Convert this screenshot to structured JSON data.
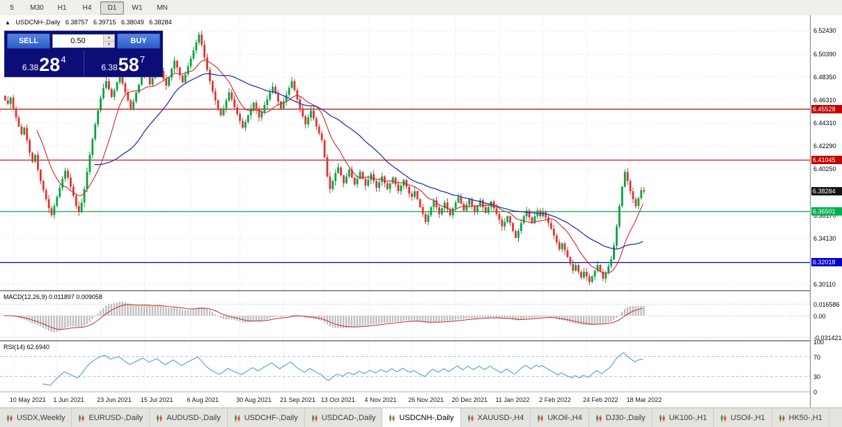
{
  "toolbar": {
    "timeframes": [
      {
        "label": "5",
        "active": false
      },
      {
        "label": "M30",
        "active": false
      },
      {
        "label": "H1",
        "active": false
      },
      {
        "label": "H4",
        "active": false
      },
      {
        "label": "D1",
        "active": true
      },
      {
        "label": "W1",
        "active": false
      },
      {
        "label": "MN",
        "active": false
      }
    ]
  },
  "chart_header": {
    "collapse_arrow": "▲",
    "title": "USDCNH-,Daily",
    "open": "6.38757",
    "high": "6.39715",
    "low": "6.38049",
    "close": "6.38284"
  },
  "trade_panel": {
    "sell_label": "SELL",
    "buy_label": "BUY",
    "volume": "0.50",
    "spin_up": "▲",
    "spin_down": "▼",
    "sell_price_prefix": "6.38",
    "sell_price_big": "28",
    "sell_price_sup": "4",
    "buy_price_prefix": "6.38",
    "buy_price_big": "58",
    "buy_price_sup": "7"
  },
  "price_axis": {
    "gridline_labels": [
      "6.52430",
      "6.50390",
      "6.48350",
      "6.46310",
      "6.44310",
      "6.42290",
      "6.40250",
      "6.36170",
      "6.34130",
      "6.30110"
    ],
    "levels": [
      {
        "label": "6.45528",
        "price": 6.45528,
        "bg": "#c40000",
        "line": "#c40000"
      },
      {
        "label": "6.41045",
        "price": 6.41045,
        "bg": "#c40000",
        "line": "#c40000"
      },
      {
        "label": "6.38284",
        "price": 6.38284,
        "bg": "#141414",
        "line": null
      },
      {
        "label": "6.36501",
        "price": 6.36501,
        "bg": "#00b050",
        "line": "#00b050"
      },
      {
        "label": "6.32018",
        "price": 6.32018,
        "bg": "#0000cc",
        "line": "#0000cc"
      }
    ]
  },
  "indicators": {
    "macd": {
      "label": "MACD(12,26,9) 0.011897 0.009058",
      "axis_labels": [
        "0.016586",
        "0.00",
        "-0.031421"
      ]
    },
    "rsi": {
      "label": "RSI(14) 62.6940",
      "axis_labels": [
        "100",
        "70",
        "30",
        "0"
      ],
      "bands": [
        70,
        30
      ]
    }
  },
  "bottom_tabs": {
    "items": [
      {
        "label": "USDX,Weekly",
        "active": false
      },
      {
        "label": "EURUSD-,Daily",
        "active": false
      },
      {
        "label": "AUDUSD-,Daily",
        "active": false
      },
      {
        "label": "USDCHF-,Daily",
        "active": false
      },
      {
        "label": "USDCAD-,Daily",
        "active": false
      },
      {
        "label": "USDCNH-,Daily",
        "active": true
      },
      {
        "label": "XAUUSD-,H4",
        "active": false
      },
      {
        "label": "UKOil-,H4",
        "active": false
      },
      {
        "label": "DJ30-,Daily",
        "active": false
      },
      {
        "label": "UK100-,H1",
        "active": false
      },
      {
        "label": "USOil-,H1",
        "active": false
      },
      {
        "label": "HK50-,H1",
        "active": false
      }
    ]
  },
  "chart_data": {
    "type": "candlestick",
    "symbol": "USDCNH-",
    "timeframe": "Daily",
    "current_ohlc": {
      "open": 6.38757,
      "high": 6.39715,
      "low": 6.38049,
      "close": 6.38284
    },
    "price_domain": [
      6.296,
      6.538
    ],
    "levels": {
      "resistance_upper": 6.45528,
      "resistance_lower": 6.41045,
      "current_price": 6.38284,
      "support_green": 6.36501,
      "support_blue": 6.32018
    },
    "ma_fast_period": 13,
    "ma_slow_period": 34,
    "macd_params": {
      "fast": 12,
      "slow": 26,
      "signal": 9
    },
    "macd_current": [
      0.011897,
      0.009058
    ],
    "macd_axis": {
      "top": 0.016586,
      "zero": 0.0,
      "bottom": -0.031421
    },
    "rsi_period": 14,
    "rsi_current": 62.694,
    "date_ticks": [
      {
        "label": "10 May 2021",
        "index": 3
      },
      {
        "label": "1 Jun 2021",
        "index": 19
      },
      {
        "label": "23 Jun 2021",
        "index": 35
      },
      {
        "label": "15 Jul 2021",
        "index": 51
      },
      {
        "label": "6 Aug 2021",
        "index": 68
      },
      {
        "label": "30 Aug 2021",
        "index": 86
      },
      {
        "label": "21 Sep 2021",
        "index": 102
      },
      {
        "label": "13 Oct 2021",
        "index": 117
      },
      {
        "label": "4 Nov 2021",
        "index": 133
      },
      {
        "label": "26 Nov 2021",
        "index": 149
      },
      {
        "label": "20 Dec 2021",
        "index": 165
      },
      {
        "label": "11 Jan 2022",
        "index": 181
      },
      {
        "label": "2 Feb 2022",
        "index": 197
      },
      {
        "label": "24 Feb 2022",
        "index": 213
      },
      {
        "label": "18 Mar 2022",
        "index": 229
      }
    ],
    "closes": [
      6.463,
      6.46,
      6.4655,
      6.456,
      6.448,
      6.44,
      6.433,
      6.439,
      6.428,
      6.417,
      6.409,
      6.415,
      6.402,
      6.392,
      6.384,
      6.376,
      6.368,
      6.362,
      6.37,
      6.378,
      6.386,
      6.394,
      6.401,
      6.395,
      6.387,
      6.379,
      6.37,
      6.365,
      6.373,
      6.385,
      6.4,
      6.415,
      6.429,
      6.442,
      6.454,
      6.465,
      6.474,
      6.48,
      6.473,
      6.466,
      6.472,
      6.479,
      6.485,
      6.478,
      6.47,
      6.463,
      6.456,
      6.462,
      6.47,
      6.477,
      6.484,
      6.49,
      6.484,
      6.477,
      6.483,
      6.49,
      6.496,
      6.489,
      6.482,
      6.476,
      6.483,
      6.491,
      6.498,
      6.492,
      6.485,
      6.479,
      6.486,
      6.493,
      6.5,
      6.507,
      6.514,
      6.521,
      6.512,
      6.501,
      6.49,
      6.48,
      6.471,
      6.463,
      6.456,
      6.45,
      6.456,
      6.463,
      6.47,
      6.464,
      6.457,
      6.451,
      6.445,
      6.439,
      6.444,
      6.45,
      6.456,
      6.461,
      6.455,
      6.448,
      6.453,
      6.459,
      6.464,
      6.47,
      6.475,
      6.469,
      6.462,
      6.456,
      6.462,
      6.468,
      6.474,
      6.48,
      6.472,
      6.464,
      6.456,
      6.449,
      6.442,
      6.448,
      6.454,
      6.447,
      6.44,
      6.434,
      6.428,
      6.413,
      6.396,
      6.385,
      6.392,
      6.399,
      6.404,
      6.397,
      6.39,
      6.396,
      6.402,
      6.395,
      6.389,
      6.394,
      6.4,
      6.394,
      6.388,
      6.393,
      6.398,
      6.392,
      6.386,
      6.391,
      6.396,
      6.39,
      6.385,
      6.39,
      6.395,
      6.389,
      6.383,
      6.388,
      6.393,
      6.387,
      6.381,
      6.378,
      6.383,
      6.376,
      6.369,
      6.363,
      6.356,
      6.362,
      6.369,
      6.375,
      6.369,
      6.363,
      6.368,
      6.373,
      6.367,
      6.362,
      6.368,
      6.373,
      6.378,
      6.372,
      6.366,
      6.371,
      6.376,
      6.37,
      6.365,
      6.37,
      6.375,
      6.369,
      6.364,
      6.369,
      6.374,
      6.368,
      6.363,
      6.358,
      6.352,
      6.356,
      6.361,
      6.355,
      6.348,
      6.342,
      6.348,
      6.355,
      6.361,
      6.366,
      6.36,
      6.355,
      6.361,
      6.366,
      6.361,
      6.365,
      6.36,
      6.355,
      6.35,
      6.344,
      6.338,
      6.332,
      6.337,
      6.331,
      6.325,
      6.319,
      6.313,
      6.318,
      6.312,
      6.307,
      6.312,
      6.308,
      6.303,
      6.308,
      6.313,
      6.318,
      6.312,
      6.306,
      6.311,
      6.317,
      6.323,
      6.335,
      6.352,
      6.37,
      6.387,
      6.4,
      6.392,
      6.383,
      6.376,
      6.37,
      6.377,
      6.384,
      6.38284
    ],
    "colors": {
      "up": "#00a53c",
      "down": "#df3432",
      "wick_up": "#008632",
      "wick_down": "#c02a28",
      "ma_fast": "#c82a2a",
      "ma_slow": "#2633b4",
      "macd_hist": "#bdbdbd",
      "macd_signal": "#c82a2a",
      "rsi_line": "#4f9fd4",
      "grid": "#dedede",
      "level_red": "#c40000",
      "level_green": "#00b050",
      "level_blue": "#0000cc"
    }
  }
}
